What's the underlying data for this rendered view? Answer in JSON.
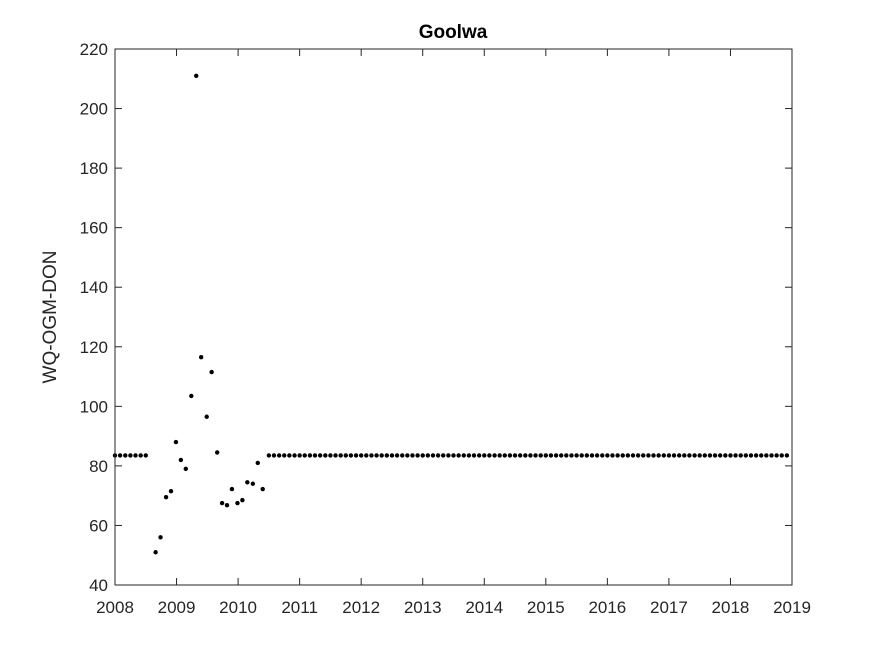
{
  "chart_data": {
    "type": "scatter",
    "title": "Goolwa",
    "xlabel": "",
    "ylabel": "WQ-OGM-DON",
    "xlim": [
      2008,
      2019
    ],
    "ylim": [
      40,
      220
    ],
    "x_ticks": [
      "2008",
      "2009",
      "2010",
      "2011",
      "2012",
      "2013",
      "2014",
      "2015",
      "2016",
      "2017",
      "2018",
      "2019"
    ],
    "y_ticks": [
      "40",
      "60",
      "80",
      "100",
      "120",
      "140",
      "160",
      "180",
      "200",
      "220"
    ],
    "grid": false,
    "marker_color": "#000000",
    "series": [
      {
        "points": [
          [
            2008.0,
            83.5
          ],
          [
            2008.083,
            83.5
          ],
          [
            2008.167,
            83.5
          ],
          [
            2008.25,
            83.5
          ],
          [
            2008.333,
            83.5
          ],
          [
            2008.417,
            83.5
          ],
          [
            2008.5,
            83.5
          ],
          [
            2008.66,
            51
          ],
          [
            2008.74,
            56
          ],
          [
            2008.83,
            69.5
          ],
          [
            2008.91,
            71.5
          ],
          [
            2008.99,
            88
          ],
          [
            2009.07,
            82
          ],
          [
            2009.15,
            79
          ],
          [
            2009.24,
            103.5
          ],
          [
            2009.32,
            211
          ],
          [
            2009.4,
            116.5
          ],
          [
            2009.49,
            96.5
          ],
          [
            2009.57,
            111.5
          ],
          [
            2009.66,
            84.5
          ],
          [
            2009.74,
            67.5
          ],
          [
            2009.82,
            66.8
          ],
          [
            2009.9,
            72.2
          ],
          [
            2009.99,
            67.5
          ],
          [
            2010.07,
            68.5
          ],
          [
            2010.15,
            74.5
          ],
          [
            2010.24,
            74
          ],
          [
            2010.32,
            81
          ],
          [
            2010.4,
            72.2
          ],
          [
            2010.5,
            83.5
          ],
          [
            2010.583,
            83.5
          ],
          [
            2010.667,
            83.5
          ],
          [
            2010.75,
            83.5
          ],
          [
            2010.833,
            83.5
          ],
          [
            2010.917,
            83.5
          ],
          [
            2011.0,
            83.5
          ],
          [
            2011.083,
            83.5
          ],
          [
            2011.167,
            83.5
          ],
          [
            2011.25,
            83.5
          ],
          [
            2011.333,
            83.5
          ],
          [
            2011.417,
            83.5
          ],
          [
            2011.5,
            83.5
          ],
          [
            2011.583,
            83.5
          ],
          [
            2011.667,
            83.5
          ],
          [
            2011.75,
            83.5
          ],
          [
            2011.833,
            83.5
          ],
          [
            2011.917,
            83.5
          ],
          [
            2012.0,
            83.5
          ],
          [
            2012.083,
            83.5
          ],
          [
            2012.167,
            83.5
          ],
          [
            2012.25,
            83.5
          ],
          [
            2012.333,
            83.5
          ],
          [
            2012.417,
            83.5
          ],
          [
            2012.5,
            83.5
          ],
          [
            2012.583,
            83.5
          ],
          [
            2012.667,
            83.5
          ],
          [
            2012.75,
            83.5
          ],
          [
            2012.833,
            83.5
          ],
          [
            2012.917,
            83.5
          ],
          [
            2013.0,
            83.5
          ],
          [
            2013.083,
            83.5
          ],
          [
            2013.167,
            83.5
          ],
          [
            2013.25,
            83.5
          ],
          [
            2013.333,
            83.5
          ],
          [
            2013.417,
            83.5
          ],
          [
            2013.5,
            83.5
          ],
          [
            2013.583,
            83.5
          ],
          [
            2013.667,
            83.5
          ],
          [
            2013.75,
            83.5
          ],
          [
            2013.833,
            83.5
          ],
          [
            2013.917,
            83.5
          ],
          [
            2014.0,
            83.5
          ],
          [
            2014.083,
            83.5
          ],
          [
            2014.167,
            83.5
          ],
          [
            2014.25,
            83.5
          ],
          [
            2014.333,
            83.5
          ],
          [
            2014.417,
            83.5
          ],
          [
            2014.5,
            83.5
          ],
          [
            2014.583,
            83.5
          ],
          [
            2014.667,
            83.5
          ],
          [
            2014.75,
            83.5
          ],
          [
            2014.833,
            83.5
          ],
          [
            2014.917,
            83.5
          ],
          [
            2015.0,
            83.5
          ],
          [
            2015.083,
            83.5
          ],
          [
            2015.167,
            83.5
          ],
          [
            2015.25,
            83.5
          ],
          [
            2015.333,
            83.5
          ],
          [
            2015.417,
            83.5
          ],
          [
            2015.5,
            83.5
          ],
          [
            2015.583,
            83.5
          ],
          [
            2015.667,
            83.5
          ],
          [
            2015.75,
            83.5
          ],
          [
            2015.833,
            83.5
          ],
          [
            2015.917,
            83.5
          ],
          [
            2016.0,
            83.5
          ],
          [
            2016.083,
            83.5
          ],
          [
            2016.167,
            83.5
          ],
          [
            2016.25,
            83.5
          ],
          [
            2016.333,
            83.5
          ],
          [
            2016.417,
            83.5
          ],
          [
            2016.5,
            83.5
          ],
          [
            2016.583,
            83.5
          ],
          [
            2016.667,
            83.5
          ],
          [
            2016.75,
            83.5
          ],
          [
            2016.833,
            83.5
          ],
          [
            2016.917,
            83.5
          ],
          [
            2017.0,
            83.5
          ],
          [
            2017.083,
            83.5
          ],
          [
            2017.167,
            83.5
          ],
          [
            2017.25,
            83.5
          ],
          [
            2017.333,
            83.5
          ],
          [
            2017.417,
            83.5
          ],
          [
            2017.5,
            83.5
          ],
          [
            2017.583,
            83.5
          ],
          [
            2017.667,
            83.5
          ],
          [
            2017.75,
            83.5
          ],
          [
            2017.833,
            83.5
          ],
          [
            2017.917,
            83.5
          ],
          [
            2018.0,
            83.5
          ],
          [
            2018.083,
            83.5
          ],
          [
            2018.167,
            83.5
          ],
          [
            2018.25,
            83.5
          ],
          [
            2018.333,
            83.5
          ],
          [
            2018.417,
            83.5
          ],
          [
            2018.5,
            83.5
          ],
          [
            2018.583,
            83.5
          ],
          [
            2018.667,
            83.5
          ],
          [
            2018.75,
            83.5
          ],
          [
            2018.833,
            83.5
          ],
          [
            2018.917,
            83.5
          ]
        ]
      }
    ]
  }
}
